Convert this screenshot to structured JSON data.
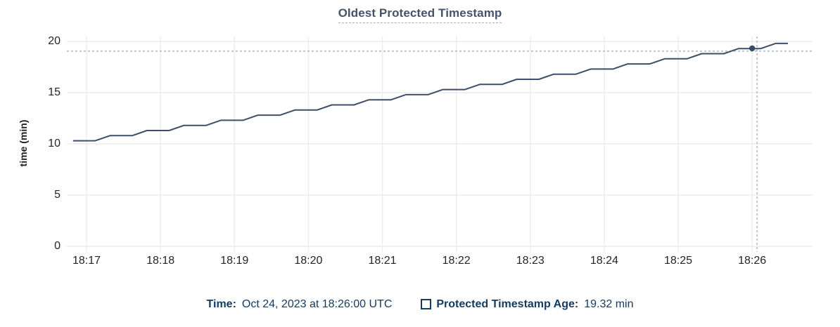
{
  "chart": {
    "title": "Oldest Protected Timestamp",
    "y_axis": {
      "label": "time (min)"
    },
    "x_axis": {
      "tick_labels": [
        "18:17",
        "18:18",
        "18:19",
        "18:20",
        "18:21",
        "18:22",
        "18:23",
        "18:24",
        "18:25",
        "18:26"
      ]
    }
  },
  "chart_data": {
    "type": "line",
    "title": "Oldest Protected Timestamp",
    "xlabel": "",
    "ylabel": "time (min)",
    "ylim": [
      0,
      20
    ],
    "y_tick_values": [
      0,
      5,
      10,
      15,
      20
    ],
    "x_domain": [
      "18:16:44",
      "18:26:49"
    ],
    "x_tick_times": [
      "18:17:00",
      "18:18:00",
      "18:19:00",
      "18:20:00",
      "18:21:00",
      "18:22:00",
      "18:23:00",
      "18:24:00",
      "18:25:00",
      "18:26:00"
    ],
    "grid": true,
    "legend_position": "bottom",
    "series": [
      {
        "name": "Protected Timestamp Age",
        "unit": "min",
        "points": [
          [
            "18:16:49",
            10.3
          ],
          [
            "18:17:07",
            10.3
          ],
          [
            "18:17:19",
            10.8
          ],
          [
            "18:17:37",
            10.8
          ],
          [
            "18:17:49",
            11.3
          ],
          [
            "18:18:07",
            11.3
          ],
          [
            "18:18:19",
            11.8
          ],
          [
            "18:18:37",
            11.8
          ],
          [
            "18:18:49",
            12.3
          ],
          [
            "18:19:07",
            12.3
          ],
          [
            "18:19:19",
            12.8
          ],
          [
            "18:19:37",
            12.8
          ],
          [
            "18:19:49",
            13.3
          ],
          [
            "18:20:07",
            13.3
          ],
          [
            "18:20:19",
            13.8
          ],
          [
            "18:20:37",
            13.8
          ],
          [
            "18:20:49",
            14.3
          ],
          [
            "18:21:07",
            14.3
          ],
          [
            "18:21:19",
            14.8
          ],
          [
            "18:21:37",
            14.8
          ],
          [
            "18:21:49",
            15.3
          ],
          [
            "18:22:07",
            15.3
          ],
          [
            "18:22:19",
            15.8
          ],
          [
            "18:22:37",
            15.8
          ],
          [
            "18:22:49",
            16.3
          ],
          [
            "18:23:07",
            16.3
          ],
          [
            "18:23:19",
            16.8
          ],
          [
            "18:23:37",
            16.8
          ],
          [
            "18:23:49",
            17.3
          ],
          [
            "18:24:07",
            17.3
          ],
          [
            "18:24:19",
            17.8
          ],
          [
            "18:24:37",
            17.8
          ],
          [
            "18:24:49",
            18.3
          ],
          [
            "18:25:07",
            18.3
          ],
          [
            "18:25:19",
            18.8
          ],
          [
            "18:25:37",
            18.8
          ],
          [
            "18:25:49",
            19.3
          ],
          [
            "18:26:07",
            19.3
          ],
          [
            "18:26:19",
            19.8
          ],
          [
            "18:26:29",
            19.8
          ]
        ]
      }
    ],
    "hover_point": {
      "time": "18:26:00",
      "value": 19.32
    },
    "cursor_crosshair": {
      "time": "18:26:04",
      "value": 19.05
    }
  },
  "legend": {
    "time_label": "Time:",
    "time_value": "Oct 24, 2023 at 18:26:00 UTC",
    "series_label": "Protected Timestamp Age:",
    "series_value": "19.32 min"
  },
  "colors": {
    "title": "#46536b",
    "title_underline": "#9fb0c1",
    "legend_text": "#143c63",
    "line": "#3e4d68",
    "point": "#394a63",
    "grid": "#ececec",
    "crosshair": "#a6b7c4",
    "tick_text": "#242424",
    "background": "#ffffff"
  }
}
